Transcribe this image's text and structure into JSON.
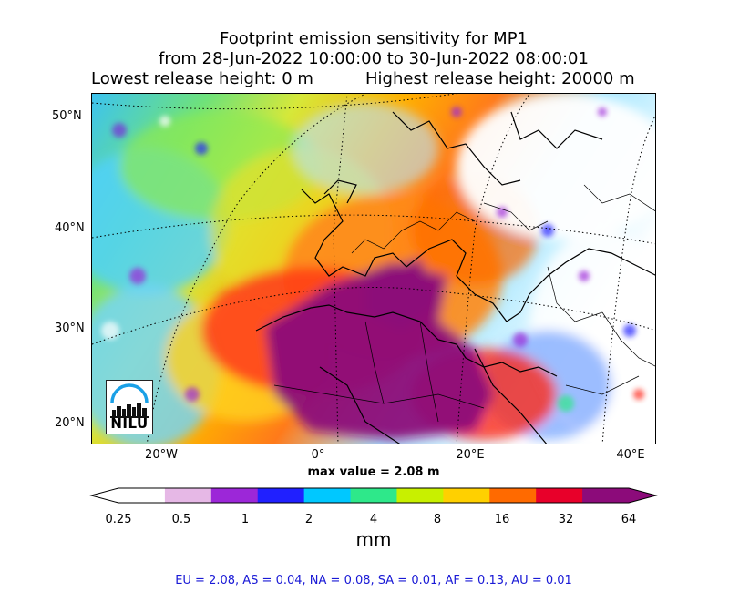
{
  "header": {
    "title_line1": "Footprint emission sensitivity for MP1",
    "title_line2": "from 28-Jun-2022 10:00:00 to 30-Jun-2022 08:00:01",
    "lowest_release": "Lowest release height: 0 m",
    "highest_release": "Highest release height: 20000 m"
  },
  "map": {
    "lat_ticks": [
      "50°N",
      "40°N",
      "30°N",
      "20°N"
    ],
    "lon_ticks": [
      "20°W",
      "0°",
      "20°E",
      "40°E"
    ],
    "logo_text": "NILU",
    "max_value": "max value = 2.08 m"
  },
  "colorbar": {
    "labels": [
      "0.25",
      "0.5",
      "1",
      "2",
      "4",
      "8",
      "16",
      "32",
      "64"
    ],
    "unit": "mm",
    "colors": [
      "#ffffff",
      "#e6b8e6",
      "#9c27d8",
      "#2020ff",
      "#00c8ff",
      "#2ee88a",
      "#c8f000",
      "#ffd000",
      "#ff6a00",
      "#e8002a",
      "#8c0b7a"
    ]
  },
  "totals": "EU = 2.08,  AS = 0.04,  NA = 0.08,  SA = 0.01,  AF = 0.13,  AU = 0.01"
}
